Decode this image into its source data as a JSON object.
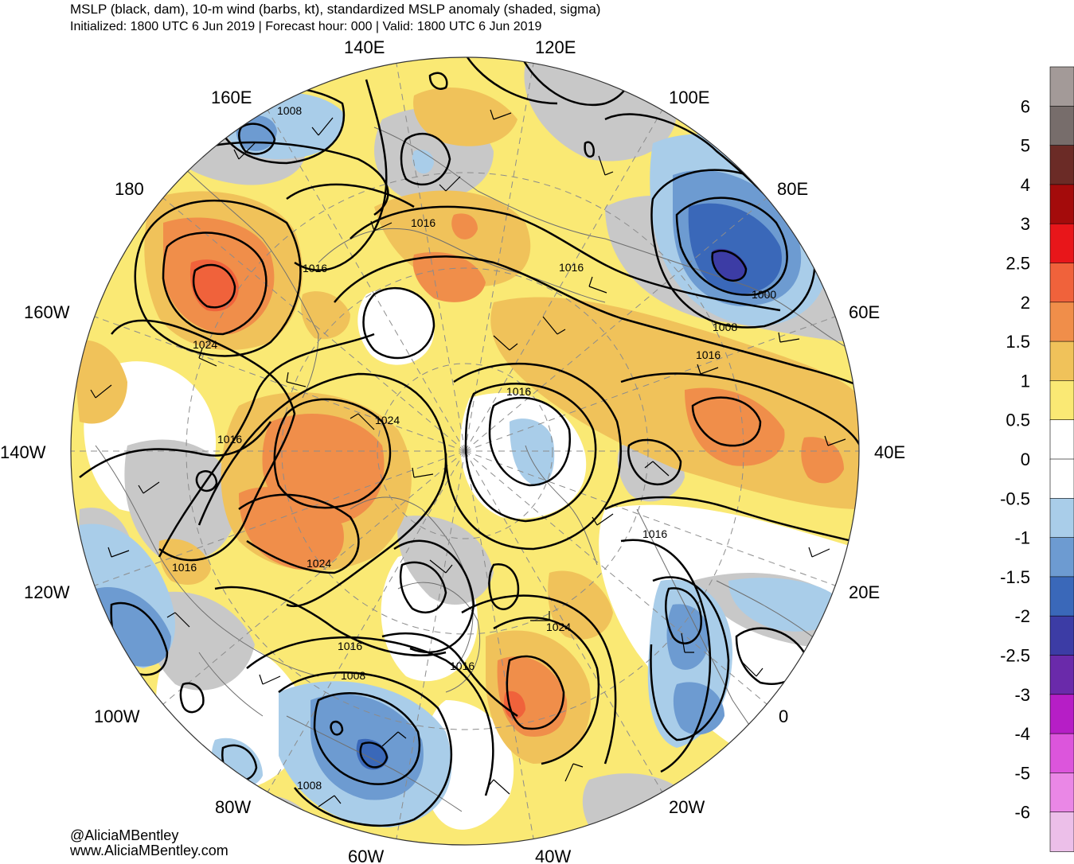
{
  "header": {
    "title": "MSLP (black, dam), 10-m wind (barbs, kt), standardized MSLP anomaly (shaded, sigma)",
    "subtitle": "Initialized: 1800 UTC 6 Jun 2019 | Forecast hour: 000 | Valid: 1800 UTC 6 Jun 2019"
  },
  "credits": {
    "handle": "@AliciaMBentley",
    "website": "www.AliciaMBentley.com"
  },
  "longitude_labels": [
    "140E",
    "120E",
    "100E",
    "80E",
    "60E",
    "40E",
    "20E",
    "0",
    "20W",
    "40W",
    "60W",
    "80W",
    "100W",
    "120W",
    "140W",
    "160W",
    "180",
    "160E"
  ],
  "contour_labels": [
    "1008",
    "1016",
    "1016",
    "1016",
    "1000",
    "1008",
    "1016",
    "1016",
    "1024",
    "1024",
    "1016",
    "1016",
    "1016",
    "1024",
    "1024",
    "1016",
    "1016",
    "1008",
    "1008"
  ],
  "colorbar": {
    "labels": [
      "6",
      "5",
      "4",
      "3",
      "2.5",
      "2",
      "1.5",
      "1",
      "0.5",
      "0",
      "-0.5",
      "-1",
      "-1.5",
      "-2",
      "-2.5",
      "-3",
      "-4",
      "-5",
      "-6"
    ],
    "colors": [
      "#a39a98",
      "#776d6b",
      "#6b2b26",
      "#a40b0b",
      "#e8161a",
      "#f0623b",
      "#f08e4a",
      "#f0c25a",
      "#fae974",
      "#ffffff",
      "#ffffff",
      "#a9cde9",
      "#6d9bd1",
      "#3a68b9",
      "#3c3ca5",
      "#6a2aaa",
      "#b61ec6",
      "#dc55dc",
      "#ea87e6",
      "#ecbfe9"
    ]
  },
  "colors": {
    "land_gray": "#c8c8c8",
    "coast": "#6f6f6f",
    "contour": "#000000",
    "grid": "#8c8c8c"
  }
}
